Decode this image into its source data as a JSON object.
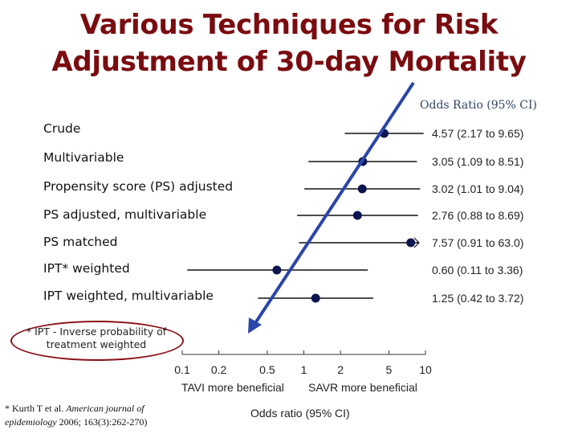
{
  "title_line1": "Various Techniques for Risk",
  "title_line2": "Adjustment of 30-day Mortality",
  "or_header": "Odds Ratio (95% CI)",
  "footnote": "* IPT - Inverse probability of treatment weighted",
  "citation": {
    "prefix": "* Kurth T et al. ",
    "journal": "American journal of epidemiology",
    "suffix": " 2006; 163(3):262-270)"
  },
  "colors": {
    "title": "#7a0c10",
    "marker": "#0d1550",
    "arrow": "#2a46a8",
    "oval": "#8a1218"
  },
  "chart_data": {
    "type": "forest",
    "xscale": "log",
    "xlim": [
      0.1,
      10
    ],
    "xticks": [
      0.1,
      0.2,
      0.5,
      1,
      2,
      5,
      10
    ],
    "xtick_labels": [
      "0.1",
      "0.2",
      "0.5",
      "1",
      "2",
      "5",
      "10"
    ],
    "xlabel": "Odds ratio (95% CI)",
    "left_annotation": "TAVI more beneficial",
    "right_annotation": "SAVR more beneficial",
    "rows": [
      {
        "label": "Crude",
        "or": 4.57,
        "lo": 2.17,
        "hi": 9.65,
        "text": "4.57 (2.17 to 9.65)"
      },
      {
        "label": "Multivariable",
        "or": 3.05,
        "lo": 1.09,
        "hi": 8.51,
        "text": "3.05 (1.09 to 8.51)"
      },
      {
        "label": "Propensity score (PS) adjusted",
        "or": 3.02,
        "lo": 1.01,
        "hi": 9.04,
        "text": "3.02 (1.01 to 9.04)"
      },
      {
        "label": "PS adjusted, multivariable",
        "or": 2.76,
        "lo": 0.88,
        "hi": 8.69,
        "text": "2.76 (0.88 to 8.69)"
      },
      {
        "label": "PS matched",
        "or": 7.57,
        "lo": 0.91,
        "hi": 63.0,
        "text": "7.57 (0.91 to 63.0)",
        "truncated": true
      },
      {
        "label": "IPT* weighted",
        "or": 0.6,
        "lo": 0.11,
        "hi": 3.36,
        "text": "0.60 (0.11 to 3.36)"
      },
      {
        "label": "IPT weighted, multivariable",
        "or": 1.25,
        "lo": 0.42,
        "hi": 3.72,
        "text": "1.25 (0.42 to 3.72)"
      }
    ]
  }
}
